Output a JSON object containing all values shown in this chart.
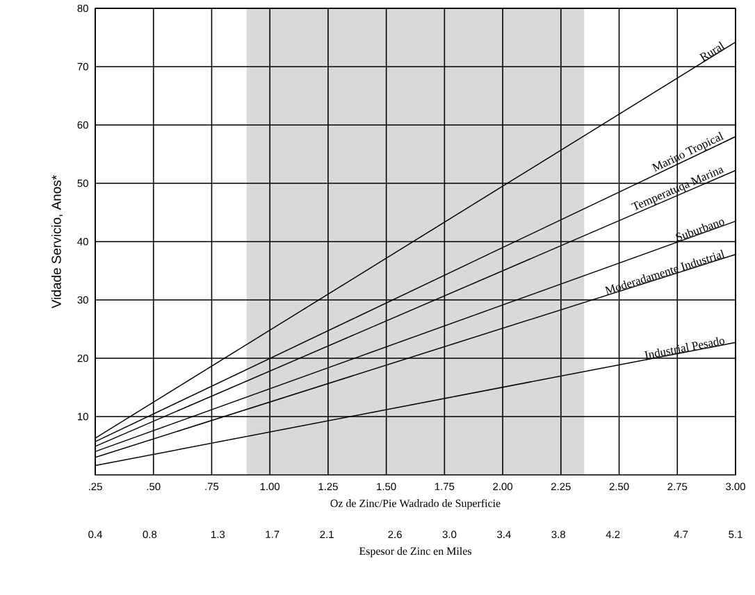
{
  "chart_data": {
    "type": "line",
    "xlabel": "Oz de Zinc/Pie Wadrado de Superficie",
    "ylabel": "Vidade Servicio, Anos*",
    "x2label": "Espesor de Zinc en Miles",
    "x": [
      0.25,
      3.0
    ],
    "series": [
      {
        "name": "Rural",
        "color": "#000000",
        "values": [
          6.3,
          74.2
        ]
      },
      {
        "name": "Marino Tropical",
        "color": "#000000",
        "values": [
          5.7,
          58.0
        ]
      },
      {
        "name": "Temperatuqa Marina",
        "color": "#000000",
        "values": [
          4.9,
          52.2
        ]
      },
      {
        "name": "Suburbano",
        "color": "#000000",
        "values": [
          4.0,
          43.5
        ]
      },
      {
        "name": "Moderadamente Industrial",
        "color": "#000000",
        "values": [
          3.0,
          37.8
        ]
      },
      {
        "name": "Industrial Pesado",
        "color": "#000000",
        "values": [
          1.6,
          22.7
        ]
      }
    ],
    "xlim": [
      0.25,
      3.0
    ],
    "ylim": [
      0,
      80
    ],
    "xticks": [
      {
        "value": 0.25,
        "label": ".25"
      },
      {
        "value": 0.5,
        "label": ".50"
      },
      {
        "value": 0.75,
        "label": ".75"
      },
      {
        "value": 1.0,
        "label": "1.00"
      },
      {
        "value": 1.25,
        "label": "1.25"
      },
      {
        "value": 1.5,
        "label": "1.50"
      },
      {
        "value": 1.75,
        "label": "1.75"
      },
      {
        "value": 2.0,
        "label": "2.00"
      },
      {
        "value": 2.25,
        "label": "2.25"
      },
      {
        "value": 2.5,
        "label": "2.50"
      },
      {
        "value": 2.75,
        "label": "2.75"
      },
      {
        "value": 3.0,
        "label": "3.00"
      }
    ],
    "yticks": [
      10,
      20,
      30,
      40,
      50,
      60,
      70,
      80
    ],
    "x2lim": [
      0.4,
      5.1
    ],
    "x2ticks": [
      0.4,
      0.8,
      1.3,
      1.7,
      2.1,
      2.6,
      {
        "value": 3.0,
        "label": "3.0"
      },
      3.4,
      3.8,
      4.2,
      4.7,
      5.1
    ],
    "bands": [
      {
        "axis": "x",
        "from": 0.9,
        "to": 2.35,
        "color": "#d9d9d9"
      }
    ],
    "grid": true,
    "marker": "none",
    "line_style": "solid"
  }
}
